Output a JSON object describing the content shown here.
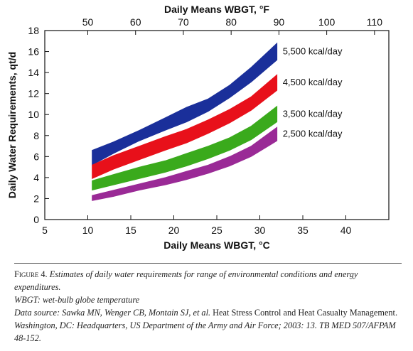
{
  "chart_data": {
    "type": "area",
    "xlabel": "Daily Means WBGT, °C",
    "x2label": "Daily Means WBGT, °F",
    "ylabel": "Daily Water Requirements, qt/d",
    "xlim": [
      5,
      45
    ],
    "x2lim": [
      41,
      113
    ],
    "ylim": [
      0,
      18
    ],
    "xticks": [
      5,
      10,
      15,
      20,
      25,
      30,
      35,
      40
    ],
    "x2ticks": [
      50,
      60,
      70,
      80,
      90,
      100,
      110
    ],
    "yticks": [
      0,
      2,
      4,
      6,
      8,
      10,
      12,
      14,
      16,
      18
    ],
    "grid": false,
    "series": [
      {
        "name": "5,500 kcal/day",
        "color": "#1a2f9a",
        "x": [
          10.5,
          13,
          16,
          19,
          21.5,
          24,
          26.5,
          29,
          32
        ],
        "lower": [
          5.2,
          6.3,
          7.5,
          8.5,
          9.3,
          10.3,
          11.6,
          13.1,
          15.2
        ],
        "upper": [
          6.6,
          7.4,
          8.5,
          9.7,
          10.7,
          11.5,
          12.8,
          14.5,
          16.8
        ]
      },
      {
        "name": "4,500 kcal/day",
        "color": "#e8101a",
        "x": [
          10.5,
          13,
          16,
          19,
          21.5,
          24,
          26.5,
          29,
          32
        ],
        "lower": [
          3.9,
          4.8,
          5.7,
          6.6,
          7.3,
          8.2,
          9.2,
          10.4,
          12.3
        ],
        "upper": [
          5.2,
          6.1,
          7.0,
          7.9,
          8.6,
          9.5,
          10.5,
          11.7,
          13.8
        ]
      },
      {
        "name": "3,500 kcal/day",
        "color": "#3aaa1c",
        "x": [
          10.5,
          13,
          16,
          19,
          21.5,
          24,
          26.5,
          29,
          32
        ],
        "lower": [
          2.8,
          3.3,
          3.9,
          4.5,
          5.1,
          5.8,
          6.6,
          7.6,
          9.3
        ],
        "upper": [
          3.7,
          4.3,
          5.0,
          5.6,
          6.3,
          7.0,
          7.8,
          8.9,
          10.8
        ]
      },
      {
        "name": "2,500 kcal/day",
        "color": "#9a2a96",
        "x": [
          10.5,
          13,
          16,
          19,
          21.5,
          24,
          26.5,
          29,
          32
        ],
        "lower": [
          1.8,
          2.2,
          2.8,
          3.3,
          3.8,
          4.4,
          5.1,
          6.0,
          7.5
        ],
        "upper": [
          2.3,
          2.8,
          3.4,
          4.0,
          4.6,
          5.2,
          6.0,
          7.0,
          8.8
        ]
      }
    ]
  },
  "caption": {
    "figure_label": "Figure 4.",
    "figure_text": "Estimates of daily water requirements for range of environmental conditions and energy expenditures.",
    "abbrev": "WBGT: wet-bulb globe temperature",
    "source_prefix": "Data source: Sawka MN, Wenger CB, Montain SJ, et al.",
    "source_title": "Heat Stress Control and Heat Casualty Management.",
    "source_rest": "Washington, DC: Headquarters, US Department of the Army and Air Force; 2003: 13. TB MED 507/AFPAM 48-152."
  }
}
